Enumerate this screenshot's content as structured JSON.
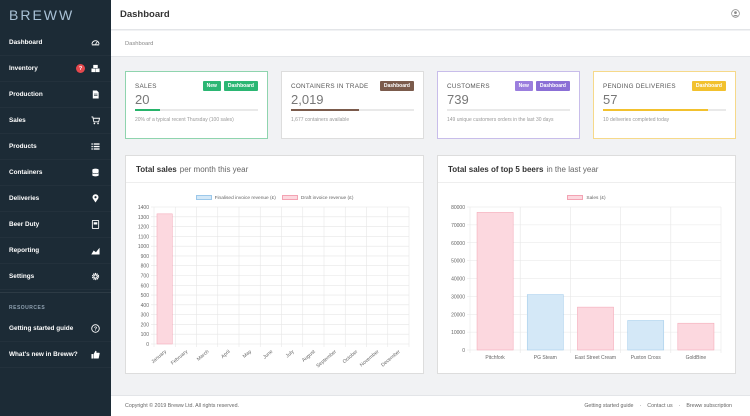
{
  "brand": "BREWW",
  "sidebar": {
    "items": [
      {
        "label": "Dashboard",
        "icon": "speedometer-icon"
      },
      {
        "label": "Inventory",
        "icon": "boxes-icon",
        "badge": "?"
      },
      {
        "label": "Production",
        "icon": "document-icon"
      },
      {
        "label": "Sales",
        "icon": "cart-icon"
      },
      {
        "label": "Products",
        "icon": "list-icon"
      },
      {
        "label": "Containers",
        "icon": "database-icon"
      },
      {
        "label": "Deliveries",
        "icon": "map-pin-icon"
      },
      {
        "label": "Beer Duty",
        "icon": "receipt-icon"
      },
      {
        "label": "Reporting",
        "icon": "chart-icon"
      },
      {
        "label": "Settings",
        "icon": "gear-icon"
      }
    ],
    "resources_label": "RESOURCES",
    "resources": [
      {
        "label": "Getting started guide",
        "icon": "question-icon"
      },
      {
        "label": "What's new in Breww?",
        "icon": "thumbs-up-icon"
      }
    ]
  },
  "header": {
    "title": "Dashboard",
    "breadcrumb": "Dashboard"
  },
  "kpis": {
    "sales": {
      "label": "SALES",
      "tags": [
        "New",
        "Dashboard"
      ],
      "value": "20",
      "sub": "20% of a typical recent Thursday (100 sales)",
      "progress": 0.2,
      "color": "#27b36a"
    },
    "containers": {
      "label": "CONTAINERS IN TRADE",
      "tags": [
        "Dashboard"
      ],
      "value": "2,019",
      "sub": "1,677 containers available",
      "progress": 0.55,
      "color": "#7b5b4c"
    },
    "customers": {
      "label": "CUSTOMERS",
      "tags": [
        "New",
        "Dashboard"
      ],
      "value": "739",
      "sub": "149 unique customers orders in the last 30 days",
      "progress": 0,
      "color": "#8b6fd6"
    },
    "deliveries": {
      "label": "PENDING DELIVERIES",
      "tags": [
        "Dashboard"
      ],
      "value": "57",
      "sub": "10 deliveries completed today",
      "progress": 0.85,
      "color": "#f2c12e"
    }
  },
  "colors": {
    "new_tag": "#2bb673",
    "dashboard_green": "#2bb673",
    "dashboard_brown": "#7b5b4c",
    "customers_new": "#9b7ede",
    "customers_dash": "#8b6fd6",
    "deliveries_dash": "#f2c12e",
    "pink": "#fcd8df",
    "blue": "#d4e8f7"
  },
  "chart_data": [
    {
      "type": "bar",
      "title_bold": "Total sales",
      "title_rest": "per month this year",
      "categories": [
        "January",
        "February",
        "March",
        "April",
        "May",
        "June",
        "July",
        "August",
        "September",
        "October",
        "November",
        "December"
      ],
      "series": [
        {
          "name": "Finalised invoice revenue (£)",
          "values": [
            0,
            0,
            0,
            0,
            0,
            0,
            0,
            0,
            0,
            0,
            0,
            0
          ],
          "color": "#d4e8f7"
        },
        {
          "name": "Draft invoice revenue (£)",
          "values": [
            1330,
            0,
            0,
            0,
            0,
            0,
            0,
            0,
            0,
            0,
            0,
            0
          ],
          "color": "#fcd8df"
        }
      ],
      "yticks": [
        "0",
        "100",
        "200",
        "300",
        "400",
        "500",
        "600",
        "700",
        "800",
        "900",
        "1000",
        "1100",
        "1200",
        "1300",
        "1400"
      ],
      "ylim": [
        0,
        1400
      ],
      "grid": true,
      "legend": "top"
    },
    {
      "type": "bar",
      "title_bold": "Total sales of top 5 beers",
      "title_rest": "in the last year",
      "categories": [
        "Pitchfork",
        "PG Steam",
        "East Street Cream",
        "Puxton Cross",
        "GoldBine"
      ],
      "series": [
        {
          "name": "Sales (£)",
          "values": [
            77000,
            31000,
            24000,
            16500,
            15000
          ],
          "colors": [
            "#fcd8df",
            "#d4e8f7",
            "#fcd8df",
            "#d4e8f7",
            "#fcd8df"
          ]
        }
      ],
      "yticks": [
        "0",
        "10000",
        "20000",
        "30000",
        "40000",
        "50000",
        "60000",
        "70000",
        "80000"
      ],
      "ylim": [
        0,
        80000
      ],
      "grid": true,
      "legend": "top"
    }
  ],
  "footer": {
    "copyright": "Copyright © 2019 Breww Ltd. All rights reserved.",
    "links": [
      "Getting started guide",
      "·",
      "Contact us",
      "·",
      "Breww subscription"
    ]
  }
}
